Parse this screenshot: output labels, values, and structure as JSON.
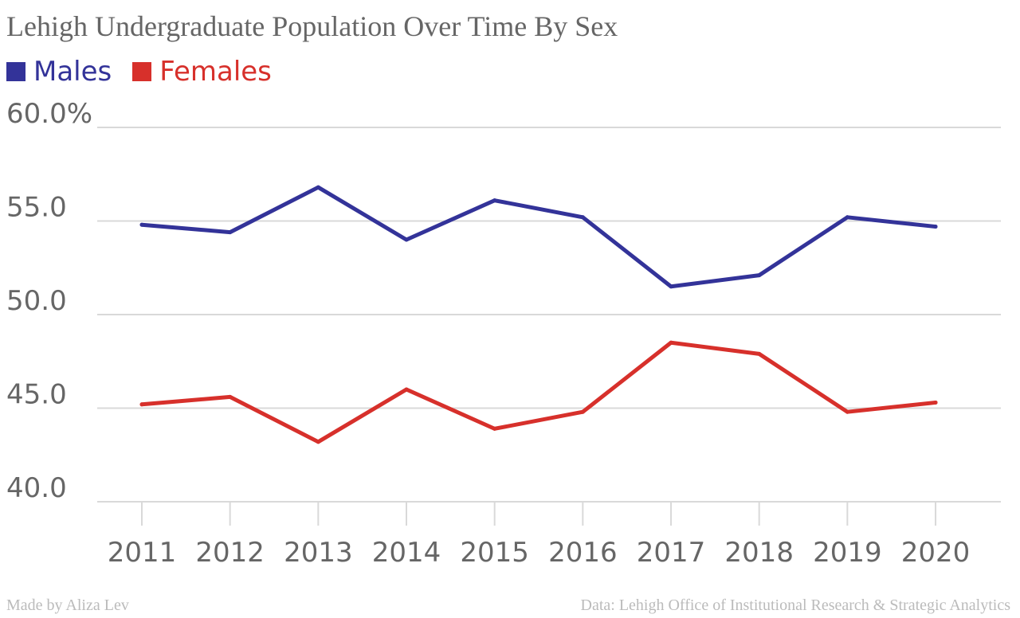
{
  "chart_data": {
    "type": "line",
    "title": "Lehigh Undergraduate Population Over Time By Sex",
    "categories": [
      "2011",
      "2012",
      "2013",
      "2014",
      "2015",
      "2016",
      "2017",
      "2018",
      "2019",
      "2020"
    ],
    "series": [
      {
        "name": "Males",
        "color": "#333399",
        "values": [
          54.8,
          54.4,
          56.8,
          54.0,
          56.1,
          55.2,
          51.5,
          52.1,
          55.2,
          54.7
        ]
      },
      {
        "name": "Females",
        "color": "#d7302b",
        "values": [
          45.2,
          45.6,
          43.2,
          46.0,
          43.9,
          44.8,
          48.5,
          47.9,
          44.8,
          45.3
        ]
      }
    ],
    "ylim": [
      40,
      60
    ],
    "yticks": [
      {
        "value": 60,
        "label": "60.0%"
      },
      {
        "value": 55,
        "label": "55.0"
      },
      {
        "value": 50,
        "label": "50.0"
      },
      {
        "value": 45,
        "label": "45.0"
      },
      {
        "value": 40,
        "label": "40.0"
      }
    ],
    "xlabel": "",
    "ylabel": "",
    "grid": "horizontal",
    "legend_position": "top-left"
  },
  "footer": {
    "credit": "Made by Aliza Lev",
    "source": "Data: Lehigh Office of Institutional Research & Strategic Analytics"
  }
}
